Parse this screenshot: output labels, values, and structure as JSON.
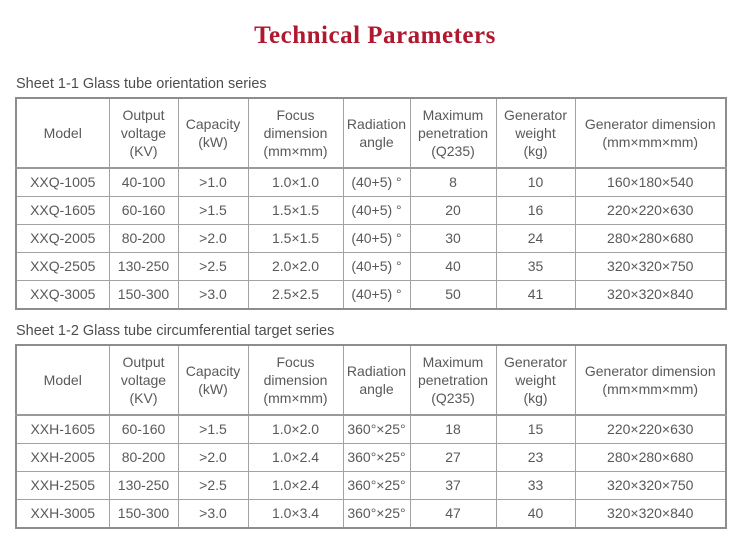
{
  "page": {
    "title": "Technical Parameters"
  },
  "colors": {
    "title_accent": "#b0182f",
    "table_text": "#59595b",
    "table_border": "#a3a3a5",
    "caption_text": "#4d4d4f"
  },
  "tables": [
    {
      "caption": "Sheet 1-1 Glass tube orientation series",
      "columns": [
        {
          "name": "model",
          "lines": [
            "Model"
          ]
        },
        {
          "name": "output-voltage",
          "lines": [
            "Output",
            "voltage",
            "(KV)"
          ]
        },
        {
          "name": "capacity",
          "lines": [
            "Capacity",
            "(kW)"
          ]
        },
        {
          "name": "focus-dimension",
          "lines": [
            "Focus",
            "dimension",
            "(mm×mm)"
          ]
        },
        {
          "name": "radiation-angle",
          "lines": [
            "Radiation",
            "angle"
          ]
        },
        {
          "name": "maximum-penetration",
          "lines": [
            "Maximum",
            "penetration",
            "(Q235)"
          ]
        },
        {
          "name": "generator-weight",
          "lines": [
            "Generator",
            "weight",
            "(kg)"
          ]
        },
        {
          "name": "generator-dimension",
          "lines": [
            "Generator dimension",
            "(mm×mm×mm)"
          ]
        }
      ],
      "rows": [
        [
          "XXQ-1005",
          "40-100",
          ">1.0",
          "1.0×1.0",
          "(40+5) °",
          "8",
          "10",
          "160×180×540"
        ],
        [
          "XXQ-1605",
          "60-160",
          ">1.5",
          "1.5×1.5",
          "(40+5) °",
          "20",
          "16",
          "220×220×630"
        ],
        [
          "XXQ-2005",
          "80-200",
          ">2.0",
          "1.5×1.5",
          "(40+5) °",
          "30",
          "24",
          "280×280×680"
        ],
        [
          "XXQ-2505",
          "130-250",
          ">2.5",
          "2.0×2.0",
          "(40+5) °",
          "40",
          "35",
          "320×320×750"
        ],
        [
          "XXQ-3005",
          "150-300",
          ">3.0",
          "2.5×2.5",
          "(40+5) °",
          "50",
          "41",
          "320×320×840"
        ]
      ]
    },
    {
      "caption": "Sheet 1-2 Glass tube circumferential target series",
      "columns": [
        {
          "name": "model",
          "lines": [
            "Model"
          ]
        },
        {
          "name": "output-voltage",
          "lines": [
            "Output",
            "voltage",
            "(KV)"
          ]
        },
        {
          "name": "capacity",
          "lines": [
            "Capacity",
            "(kW)"
          ]
        },
        {
          "name": "focus-dimension",
          "lines": [
            "Focus",
            "dimension",
            "(mm×mm)"
          ]
        },
        {
          "name": "radiation-angle",
          "lines": [
            "Radiation",
            "angle"
          ]
        },
        {
          "name": "maximum-penetration",
          "lines": [
            "Maximum",
            "penetration",
            "(Q235)"
          ]
        },
        {
          "name": "generator-weight",
          "lines": [
            "Generator",
            "weight",
            "(kg)"
          ]
        },
        {
          "name": "generator-dimension",
          "lines": [
            "Generator dimension",
            "(mm×mm×mm)"
          ]
        }
      ],
      "rows": [
        [
          "XXH-1605",
          "60-160",
          ">1.5",
          "1.0×2.0",
          "360°×25°",
          "18",
          "15",
          "220×220×630"
        ],
        [
          "XXH-2005",
          "80-200",
          ">2.0",
          "1.0×2.4",
          "360°×25°",
          "27",
          "23",
          "280×280×680"
        ],
        [
          "XXH-2505",
          "130-250",
          ">2.5",
          "1.0×2.4",
          "360°×25°",
          "37",
          "33",
          "320×320×750"
        ],
        [
          "XXH-3005",
          "150-300",
          ">3.0",
          "1.0×3.4",
          "360°×25°",
          "47",
          "40",
          "320×320×840"
        ]
      ]
    }
  ]
}
